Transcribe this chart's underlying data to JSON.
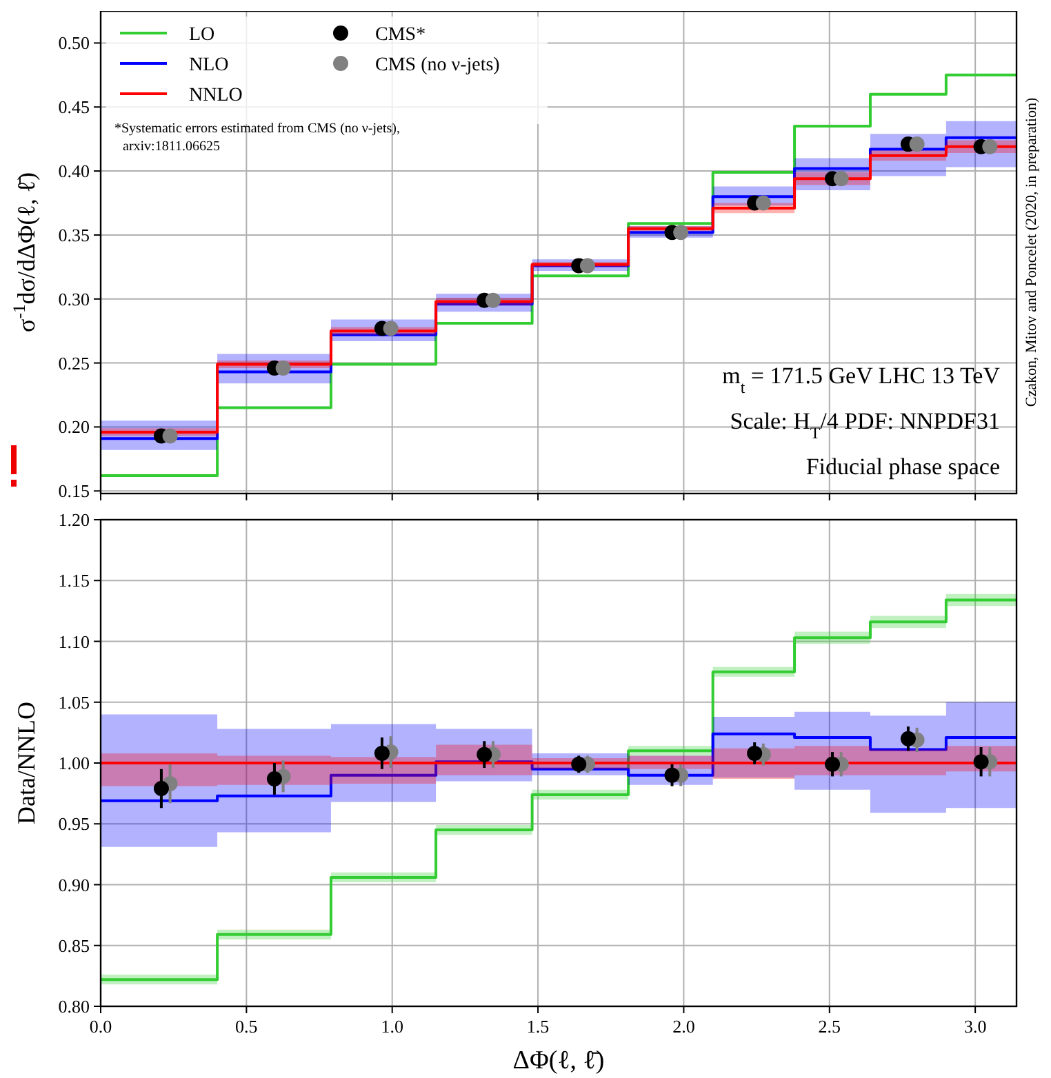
{
  "chart_data": [
    {
      "type": "step",
      "ylabel": "σ$^{-1}$dσ/dΔΦ(ℓ, ℓ̄)",
      "xlim": [
        0,
        3.1416
      ],
      "ylim": [
        0.148,
        0.525
      ],
      "grid": true,
      "legend": "top left",
      "tick_labels": "y",
      "xticks": [
        0,
        0.5,
        1,
        1.5,
        2,
        2.5,
        3
      ],
      "yticks": [
        0.15,
        {
          "value": 0.2,
          "label": "0.20"
        },
        0.25,
        {
          "value": 0.3,
          "label": "0.30"
        },
        0.35,
        {
          "value": 0.4,
          "label": "0.40"
        },
        0.45,
        {
          "value": 0.5,
          "label": "0.50"
        }
      ],
      "annotations": [
        "*Systematic errors estimated from CMS (no ν-jets), arxiv:1811.06625",
        "m$_{t}$ = 171.5 GeV LHC 13 TeV",
        "Scale: H$_{T}$/4 PDF: NNPDF31",
        "Fiducial phase space",
        "Czakon, Mitov and Poncelet (2020, in preparation)"
      ],
      "series": [
        {
          "type": "step",
          "name": "LO",
          "color": "#33cc33",
          "x": [
            0,
            0.4,
            0.79,
            1.15,
            1.48,
            1.81,
            2.1,
            2.38,
            2.64,
            2.9,
            3.1416
          ],
          "values": [
            0.162,
            0.215,
            0.249,
            0.281,
            0.318,
            0.359,
            0.399,
            0.435,
            0.46,
            0.475,
            0.475
          ]
        },
        {
          "type": "step",
          "name": "NLO",
          "color": "#0000ff",
          "x": [
            0,
            0.4,
            0.79,
            1.15,
            1.48,
            1.81,
            2.1,
            2.38,
            2.64,
            2.9,
            3.1416
          ],
          "values": [
            0.191,
            0.243,
            0.272,
            0.296,
            0.326,
            0.352,
            0.38,
            0.402,
            0.417,
            0.426,
            0.426
          ],
          "lower": [
            0.182,
            0.234,
            0.267,
            0.29,
            0.322,
            0.348,
            0.373,
            0.385,
            0.396,
            0.403,
            0.403
          ],
          "upper": [
            0.205,
            0.257,
            0.284,
            0.304,
            0.331,
            0.357,
            0.388,
            0.41,
            0.429,
            0.439,
            0.439
          ]
        },
        {
          "type": "step",
          "name": "NNLO",
          "color": "#ff0000",
          "x": [
            0,
            0.4,
            0.79,
            1.15,
            1.48,
            1.81,
            2.1,
            2.38,
            2.64,
            2.9,
            3.1416
          ],
          "values": [
            0.196,
            0.249,
            0.275,
            0.298,
            0.327,
            0.355,
            0.371,
            0.394,
            0.412,
            0.419,
            0.419
          ],
          "lower": [
            0.193,
            0.246,
            0.272,
            0.295,
            0.325,
            0.353,
            0.367,
            0.389,
            0.408,
            0.414,
            0.414
          ],
          "upper": [
            0.199,
            0.252,
            0.278,
            0.301,
            0.329,
            0.357,
            0.375,
            0.399,
            0.416,
            0.424,
            0.424
          ]
        },
        {
          "type": "scatter",
          "name": "CMS*",
          "color": "#000000",
          "marker": "circle",
          "x": [
            0.208,
            0.596,
            0.965,
            1.316,
            1.64,
            1.96,
            2.243,
            2.51,
            2.77,
            3.02
          ],
          "values": [
            0.193,
            0.246,
            0.277,
            0.299,
            0.326,
            0.352,
            0.375,
            0.394,
            0.421,
            0.419
          ]
        },
        {
          "type": "scatter",
          "name": "CMS (no ν-jets)",
          "color": "#808080",
          "marker": "circle",
          "x": [
            0.238,
            0.626,
            0.995,
            1.346,
            1.67,
            1.99,
            2.273,
            2.54,
            2.8,
            3.05
          ],
          "values": [
            0.193,
            0.246,
            0.277,
            0.299,
            0.326,
            0.352,
            0.375,
            0.394,
            0.421,
            0.419
          ]
        }
      ]
    },
    {
      "type": "step",
      "xlabel": "ΔΦ(ℓ, ℓ̄)",
      "ylabel": "Data/NNLO",
      "xlim": [
        0,
        3.1416
      ],
      "ylim": [
        0.8,
        1.2
      ],
      "grid": true,
      "xticks": [
        {
          "value": 0,
          "label": "0.0"
        },
        0.5,
        {
          "value": 1,
          "label": "1.0"
        },
        1.5,
        {
          "value": 2,
          "label": "2.0"
        },
        2.5,
        {
          "value": 3,
          "label": "3.0"
        }
      ],
      "yticks": [
        {
          "value": 0.8,
          "label": "0.80"
        },
        0.85,
        {
          "value": 0.9,
          "label": "0.90"
        },
        0.95,
        {
          "value": 1,
          "label": "1.00"
        },
        1.05,
        {
          "value": 1.1,
          "label": "1.10"
        },
        1.15,
        {
          "value": 1.2,
          "label": "1.20"
        }
      ],
      "series": [
        {
          "type": "step",
          "color": "#33cc33",
          "x": [
            0,
            0.4,
            0.79,
            1.15,
            1.48,
            1.81,
            2.1,
            2.38,
            2.64,
            2.9,
            3.1416
          ],
          "values": [
            0.822,
            0.859,
            0.906,
            0.945,
            0.974,
            1.01,
            1.075,
            1.103,
            1.116,
            1.134,
            1.134
          ],
          "lower": [
            0.818,
            0.855,
            0.902,
            0.941,
            0.97,
            1.006,
            1.071,
            1.098,
            1.111,
            1.129,
            1.129
          ],
          "upper": [
            0.826,
            0.863,
            0.91,
            0.949,
            0.978,
            1.014,
            1.079,
            1.108,
            1.121,
            1.139,
            1.139
          ]
        },
        {
          "type": "step",
          "color": "#0000ff",
          "x": [
            0,
            0.4,
            0.79,
            1.15,
            1.48,
            1.81,
            2.1,
            2.38,
            2.64,
            2.9,
            3.1416
          ],
          "values": [
            0.969,
            0.973,
            0.99,
            1.001,
            0.995,
            0.99,
            1.024,
            1.021,
            1.011,
            1.021,
            1.021
          ],
          "lower": [
            0.931,
            0.943,
            0.968,
            0.985,
            0.99,
            0.982,
            0.988,
            0.978,
            0.959,
            0.963,
            0.963
          ],
          "upper": [
            1.04,
            1.028,
            1.032,
            1.028,
            1.008,
            1.006,
            1.038,
            1.042,
            1.039,
            1.05,
            1.05
          ]
        },
        {
          "type": "step",
          "color": "#ff0000",
          "x": [
            0,
            0.4,
            0.79,
            1.15,
            1.48,
            1.81,
            2.1,
            2.38,
            2.64,
            2.9,
            3.1416
          ],
          "values": [
            1,
            1,
            1,
            1,
            1,
            1,
            1,
            1,
            1,
            1,
            1
          ],
          "lower": [
            0.981,
            0.982,
            0.983,
            0.99,
            0.995,
            0.995,
            0.987,
            0.99,
            0.99,
            0.993,
            0.993
          ],
          "upper": [
            1.008,
            1.006,
            1.005,
            1.015,
            1.004,
            1.006,
            1.012,
            1.014,
            1.011,
            1.014,
            1.014
          ]
        },
        {
          "type": "scatter",
          "color": "#808080",
          "marker": "circle",
          "x": [
            0.238,
            0.626,
            0.995,
            1.346,
            1.67,
            1.99,
            2.273,
            2.54,
            2.8,
            3.05
          ],
          "values": [
            0.983,
            0.989,
            1.009,
            1.007,
            0.999,
            0.99,
            1.007,
            0.999,
            1.019,
            1.001
          ],
          "errors": [
            0.016,
            0.013,
            0.013,
            0.011,
            0.007,
            0.009,
            0.009,
            0.01,
            0.01,
            0.012
          ]
        },
        {
          "type": "scatter",
          "color": "#000000",
          "marker": "circle",
          "x": [
            0.208,
            0.596,
            0.965,
            1.316,
            1.64,
            1.96,
            2.243,
            2.51,
            2.77,
            3.02
          ],
          "values": [
            0.979,
            0.987,
            1.008,
            1.007,
            0.999,
            0.99,
            1.008,
            0.999,
            1.02,
            1.001
          ],
          "errors": [
            0.016,
            0.013,
            0.013,
            0.011,
            0.007,
            0.009,
            0.009,
            0.01,
            0.01,
            0.012
          ]
        }
      ]
    }
  ]
}
